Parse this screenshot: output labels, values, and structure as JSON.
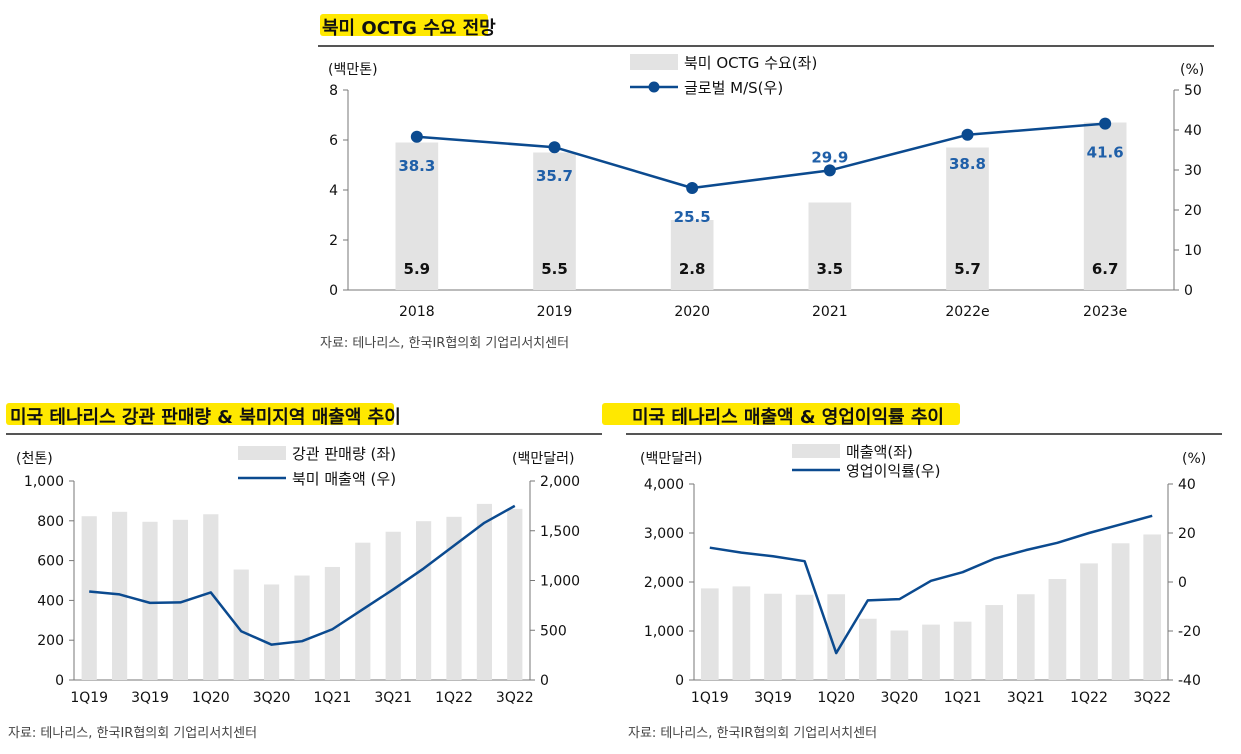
{
  "charts": {
    "top": {
      "title": "북미 OCTG 수요 전망",
      "source": "자료: 테나리스, 한국IR협의회 기업리서치센터",
      "left_unit": "(백만톤)",
      "right_unit": "(%)",
      "legend": [
        "북미 OCTG 수요(좌)",
        "글로벌 M/S(우)"
      ]
    },
    "bottom_left": {
      "title": "미국 테나리스 강관 판매량 & 북미지역 매출액 추이",
      "source": "자료: 테나리스, 한국IR협의회 기업리서치센터",
      "left_unit": "(천톤)",
      "right_unit": "(백만달러)",
      "legend": [
        "강관 판매량 (좌)",
        "북미 매출액 (우)"
      ]
    },
    "bottom_right": {
      "title": "미국 테나리스 매출액 & 영업이익률 추이",
      "source": "자료: 테나리스, 한국IR협의회 기업리서치센터",
      "left_unit": "(백만달러)",
      "right_unit": "(%)",
      "legend": [
        "매출액(좌)",
        "영업이익률(우)"
      ]
    }
  },
  "colors": {
    "bar": "#e3e3e3",
    "line": "#0b4a8f",
    "label": "#1f5fa8",
    "highlight": "#ffe800"
  },
  "chart_data": [
    {
      "type": "bar+line",
      "title": "북미 OCTG 수요 전망",
      "categories": [
        "2018",
        "2019",
        "2020",
        "2021",
        "2022e",
        "2023e"
      ],
      "series": [
        {
          "name": "북미 OCTG 수요(좌)",
          "axis": "left",
          "values": [
            5.9,
            5.5,
            2.8,
            3.5,
            5.7,
            6.7
          ],
          "labels": [
            "5.9",
            "5.5",
            "2.8",
            "3.5",
            "5.7",
            "6.7"
          ]
        },
        {
          "name": "글로벌 M/S(우)",
          "axis": "right",
          "values": [
            38.3,
            35.7,
            25.5,
            29.9,
            38.8,
            41.6
          ],
          "labels": [
            "38.3",
            "35.7",
            "25.5",
            "29.9",
            "38.8",
            "41.6"
          ]
        }
      ],
      "ylim_left": [
        0,
        8
      ],
      "yticks_left": [
        "0",
        "2",
        "4",
        "6",
        "8"
      ],
      "ylim_right": [
        0,
        50
      ],
      "yticks_right": [
        "0",
        "10",
        "20",
        "30",
        "40",
        "50"
      ],
      "grid": false,
      "legend_position": "top-center"
    },
    {
      "type": "bar+line",
      "title": "미국 테나리스 강관 판매량 & 북미지역 매출액 추이",
      "categories": [
        "1Q19",
        "2Q19",
        "3Q19",
        "4Q19",
        "1Q20",
        "2Q20",
        "3Q20",
        "4Q20",
        "1Q21",
        "2Q21",
        "3Q21",
        "4Q21",
        "1Q22",
        "2Q22",
        "3Q22"
      ],
      "tick_labels": [
        "1Q19",
        "3Q19",
        "1Q20",
        "3Q20",
        "1Q21",
        "3Q21",
        "1Q22",
        "3Q22"
      ],
      "series": [
        {
          "name": "강관 판매량 (좌)",
          "axis": "left",
          "values": [
            823,
            845,
            795,
            805,
            833,
            555,
            480,
            525,
            568,
            690,
            745,
            798,
            820,
            885,
            860
          ]
        },
        {
          "name": "북미 매출액 (우)",
          "axis": "right",
          "values": [
            890,
            860,
            775,
            780,
            880,
            490,
            355,
            390,
            510,
            710,
            910,
            1120,
            1350,
            1580,
            1750
          ]
        }
      ],
      "ylim_left": [
        0,
        1000
      ],
      "yticks_left": [
        "0",
        "200",
        "400",
        "600",
        "800",
        "1,000"
      ],
      "ylim_right": [
        0,
        2000
      ],
      "yticks_right": [
        "0",
        "500",
        "1,000",
        "1,500",
        "2,000"
      ],
      "grid": false,
      "legend_position": "top-center"
    },
    {
      "type": "bar+line",
      "title": "미국 테나리스 매출액 & 영업이익률 추이",
      "categories": [
        "1Q19",
        "2Q19",
        "3Q19",
        "4Q19",
        "1Q20",
        "2Q20",
        "3Q20",
        "4Q20",
        "1Q21",
        "2Q21",
        "3Q21",
        "4Q21",
        "1Q22",
        "2Q22",
        "3Q22"
      ],
      "tick_labels": [
        "1Q19",
        "3Q19",
        "1Q20",
        "3Q20",
        "1Q21",
        "3Q21",
        "1Q22",
        "3Q22"
      ],
      "series": [
        {
          "name": "매출액(좌)",
          "axis": "left",
          "values": [
            1870,
            1910,
            1760,
            1740,
            1750,
            1250,
            1010,
            1130,
            1190,
            1530,
            1750,
            2060,
            2380,
            2790,
            2970
          ]
        },
        {
          "name": "영업이익률(우)",
          "axis": "right",
          "values": [
            14,
            12,
            10.5,
            8.5,
            -29,
            -7.5,
            -7,
            0.5,
            4,
            9.5,
            13,
            16,
            20,
            23.5,
            27
          ]
        }
      ],
      "ylim_left": [
        0,
        4000
      ],
      "yticks_left": [
        "0",
        "1,000",
        "2,000",
        "3,000",
        "4,000"
      ],
      "ylim_right": [
        -40,
        40
      ],
      "yticks_right": [
        "-40",
        "-20",
        "0",
        "20",
        "40"
      ],
      "grid": false,
      "legend_position": "top-center"
    }
  ]
}
